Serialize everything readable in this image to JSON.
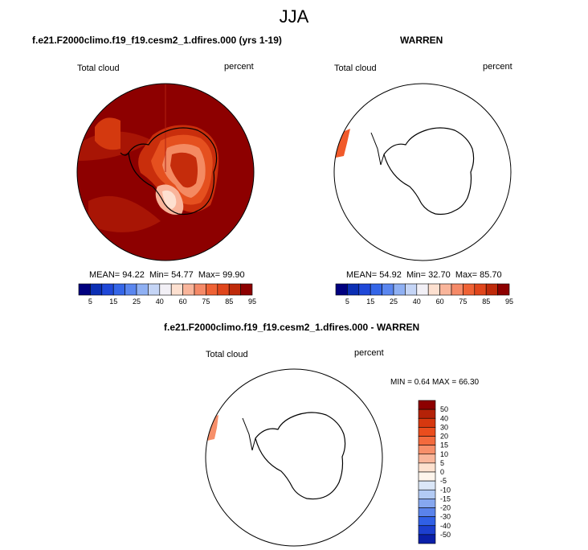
{
  "figure_title": "JJA",
  "chart_data": [
    {
      "type": "heatmap",
      "title": "f.e21.F2000climo.f19_f19.cesm2_1.dfires.000 (yrs 1-19)",
      "variable": "Total cloud",
      "units": "percent",
      "projection": "south polar stereographic",
      "stats": {
        "mean_label": "MEAN=",
        "mean": "94.22",
        "min_label": "Min=",
        "min": "54.77",
        "max_label": "Max=",
        "max": "99.90"
      },
      "colorbar": {
        "orientation": "horizontal",
        "tick_labels": [
          "5",
          "15",
          "25",
          "40",
          "60",
          "75",
          "85",
          "95"
        ],
        "colors": [
          "#00007f",
          "#0b2fb4",
          "#1f48d8",
          "#3566e8",
          "#5a86ef",
          "#8fb0f3",
          "#c5d5f6",
          "#f2f0f6",
          "#fde0d0",
          "#f9b59b",
          "#f58a68",
          "#ef6235",
          "#e0461c",
          "#bf2a0a",
          "#8d0000"
        ]
      }
    },
    {
      "type": "heatmap",
      "title": "WARREN",
      "variable": "Total cloud",
      "units": "percent",
      "projection": "south polar stereographic",
      "stats": {
        "mean_label": "MEAN=",
        "mean": "54.92",
        "min_label": "Min=",
        "min": "32.70",
        "max_label": "Max=",
        "max": "85.70"
      },
      "colorbar": {
        "orientation": "horizontal",
        "tick_labels": [
          "5",
          "15",
          "25",
          "40",
          "60",
          "75",
          "85",
          "95"
        ],
        "colors": [
          "#00007f",
          "#0b2fb4",
          "#1f48d8",
          "#3566e8",
          "#5a86ef",
          "#8fb0f3",
          "#c5d5f6",
          "#f2f0f6",
          "#fde0d0",
          "#f9b59b",
          "#f58a68",
          "#ef6235",
          "#e0461c",
          "#bf2a0a",
          "#8d0000"
        ]
      }
    },
    {
      "type": "heatmap",
      "title": "f.e21.F2000climo.f19_f19.cesm2_1.dfires.000 - WARREN",
      "variable": "Total cloud",
      "units": "percent",
      "projection": "south polar stereographic",
      "stats": {
        "min_label": "MIN =",
        "min": "0.64",
        "max_label": "MAX =",
        "max": "66.30"
      },
      "colorbar": {
        "orientation": "vertical",
        "tick_labels": [
          "50",
          "40",
          "30",
          "20",
          "15",
          "10",
          "5",
          "0",
          "-5",
          "-10",
          "-15",
          "-20",
          "-30",
          "-40",
          "-50"
        ],
        "colors": [
          "#8d0000",
          "#b42208",
          "#d6380f",
          "#ea4d1d",
          "#f36a3d",
          "#f78f6a",
          "#f9b69b",
          "#fde1cf",
          "#fef5ec",
          "#dbe7f8",
          "#b3cbf4",
          "#86a7ef",
          "#5a83eb",
          "#3060e6",
          "#1c3fcf",
          "#0a1fa8"
        ]
      }
    }
  ]
}
